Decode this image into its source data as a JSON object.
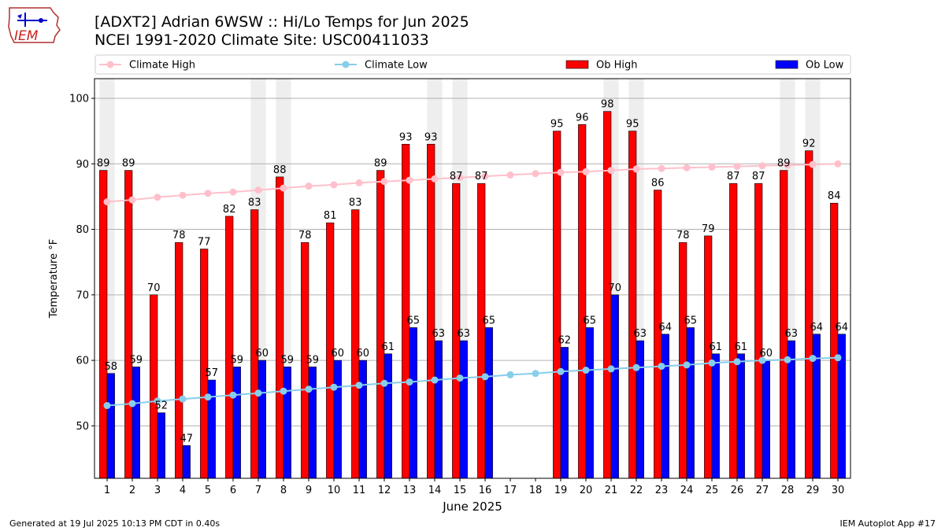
{
  "header": {
    "logo_text": "IEM",
    "title": "[ADXT2] Adrian 6WSW :: Hi/Lo Temps for Jun 2025",
    "subtitle": "NCEI 1991-2020 Climate Site: USC00411033"
  },
  "footer": {
    "generated": "Generated at 19 Jul 2025 10:13 PM CDT in 0.40s",
    "app": "IEM Autoplot App #17"
  },
  "colors": {
    "ob_high": "#ff0000",
    "ob_low": "#0000ff",
    "climate_high": "#ffc0cb",
    "climate_low": "#87ceeb",
    "weekend_band": "#eeeeee",
    "grid": "#b0b0b0"
  },
  "chart_data": {
    "type": "bar",
    "xlabel": "June 2025",
    "ylabel": "Temperature °F",
    "ylim": [
      42,
      103
    ],
    "yticks": [
      50,
      60,
      70,
      80,
      90,
      100
    ],
    "grid": "horizontal",
    "legend_position": "top",
    "categories": [
      "1",
      "2",
      "3",
      "4",
      "5",
      "6",
      "7",
      "8",
      "9",
      "10",
      "11",
      "12",
      "13",
      "14",
      "15",
      "16",
      "17",
      "18",
      "19",
      "20",
      "21",
      "22",
      "23",
      "24",
      "25",
      "26",
      "27",
      "28",
      "29",
      "30"
    ],
    "weekend_days": [
      1,
      7,
      8,
      14,
      15,
      21,
      22,
      28,
      29
    ],
    "series": [
      {
        "name": "Climate High",
        "type": "line",
        "values": [
          84.2,
          84.5,
          84.9,
          85.2,
          85.5,
          85.7,
          86.0,
          86.3,
          86.6,
          86.8,
          87.1,
          87.3,
          87.5,
          87.7,
          87.9,
          88.1,
          88.3,
          88.5,
          88.7,
          88.8,
          89.0,
          89.2,
          89.3,
          89.4,
          89.5,
          89.6,
          89.7,
          89.8,
          89.9,
          90.0
        ]
      },
      {
        "name": "Climate Low",
        "type": "line",
        "values": [
          53.1,
          53.4,
          53.8,
          54.1,
          54.4,
          54.7,
          55.0,
          55.3,
          55.6,
          55.9,
          56.2,
          56.5,
          56.7,
          57.0,
          57.3,
          57.5,
          57.8,
          58.0,
          58.3,
          58.5,
          58.7,
          58.9,
          59.1,
          59.3,
          59.6,
          59.8,
          60.0,
          60.1,
          60.3,
          60.4
        ]
      },
      {
        "name": "Ob High",
        "type": "bar",
        "values": [
          89,
          89,
          70,
          78,
          77,
          82,
          83,
          88,
          78,
          81,
          83,
          89,
          93,
          93,
          87,
          87,
          null,
          null,
          95,
          96,
          98,
          95,
          86,
          78,
          79,
          87,
          87,
          89,
          92,
          84
        ]
      },
      {
        "name": "Ob Low",
        "type": "bar",
        "values": [
          58,
          59,
          52,
          47,
          57,
          59,
          60,
          59,
          59,
          60,
          60,
          61,
          65,
          63,
          63,
          65,
          null,
          null,
          62,
          65,
          70,
          63,
          64,
          65,
          61,
          61,
          60,
          63,
          64,
          64
        ]
      }
    ]
  }
}
